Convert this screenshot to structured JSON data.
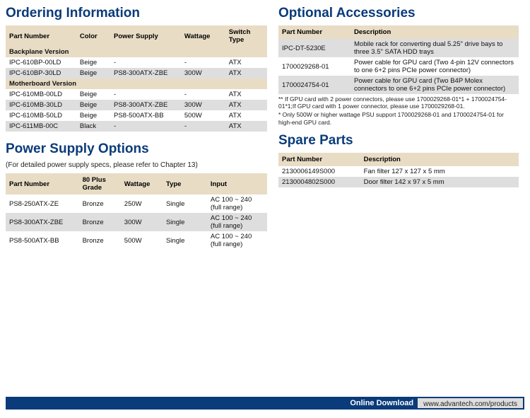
{
  "sections": {
    "ordering": "Ordering Information",
    "psu": "Power Supply Options",
    "accessories": "Optional Accessories",
    "spare": "Spare Parts"
  },
  "ordering": {
    "columns": [
      "Part Number",
      "Color",
      "Power Supply",
      "Wattage",
      "Switch Type"
    ],
    "sub1": "Backplane Version",
    "sub2": "Motherboard Version",
    "rows1": [
      [
        "IPC-610BP-00LD",
        "Beige",
        "-",
        "-",
        "ATX"
      ],
      [
        "IPC-610BP-30LD",
        "Beige",
        "PS8-300ATX-ZBE",
        "300W",
        "ATX"
      ]
    ],
    "rows2": [
      [
        "IPC-610MB-00LD",
        "Beige",
        "-",
        "-",
        "ATX"
      ],
      [
        "IPC-610MB-30LD",
        "Beige",
        "PS8-300ATX-ZBE",
        "300W",
        "ATX"
      ],
      [
        "IPC-610MB-50LD",
        "Beige",
        "PS8-500ATX-BB",
        "500W",
        "ATX"
      ],
      [
        "IPC-611MB-00C",
        "Black",
        "-",
        "-",
        "ATX"
      ]
    ],
    "colwidths": [
      "27%",
      "13%",
      "27%",
      "17%",
      "16%"
    ]
  },
  "psu": {
    "caption": "(For detailed power supply specs, please refer to Chapter 13)",
    "columns": [
      "Part Number",
      "80 Plus Grade",
      "Wattage",
      "Type",
      "Input"
    ],
    "rows": [
      [
        "PS8-250ATX-ZE",
        "Bronze",
        "250W",
        "Single",
        "AC 100 ~ 240 (full range)"
      ],
      [
        "PS8-300ATX-ZBE",
        "Bronze",
        "300W",
        "Single",
        "AC 100 ~ 240 (full range)"
      ],
      [
        "PS8-500ATX-BB",
        "Bronze",
        "500W",
        "Single",
        "AC 100 ~ 240 (full range)"
      ]
    ],
    "colwidths": [
      "28%",
      "16%",
      "16%",
      "17%",
      "23%"
    ]
  },
  "accessories": {
    "columns": [
      "Part Number",
      "Description"
    ],
    "rows": [
      [
        "IPC-DT-5230E",
        "Mobile rack for converting dual 5.25\" drive bays to three 3.5\" SATA HDD trays"
      ],
      [
        "1700029268-01",
        "Power cable for GPU card (Two 4-pin 12V connectors to one 6+2 pins PCIe power connector)"
      ],
      [
        "1700024754-01",
        "Power cable for GPU card (Two B4P Molex connectors to one 6+2 pins PCIe power connector)"
      ]
    ],
    "colwidths": [
      "30%",
      "70%"
    ],
    "foot1": "** If GPU card with 2 power connectors, please use 1700029268-01*1 + 1700024754-01*1;If GPU card with 1 power connector, please use 1700029268-01.",
    "foot2": "* Only 500W or higher wattage PSU support 1700029268-01 and 1700024754-01 for high-end GPU card."
  },
  "spare": {
    "columns": [
      "Part Number",
      "Description"
    ],
    "rows": [
      [
        "2130006149S000",
        "Fan filter 127 x 127 x 5 mm"
      ],
      [
        "2130004802S000",
        "Door filter 142 x 97 x 5 mm"
      ]
    ],
    "colwidths": [
      "34%",
      "66%"
    ]
  },
  "download": {
    "label": "Online Download",
    "url": "www.advantech.com/products"
  },
  "style": {
    "heading_color": "#0a3b7a",
    "header_bg": "#e8dcc5",
    "row_alt_bg": "#dedede",
    "bar_bg": "#0a3b7a",
    "url_bg": "#dedede"
  }
}
